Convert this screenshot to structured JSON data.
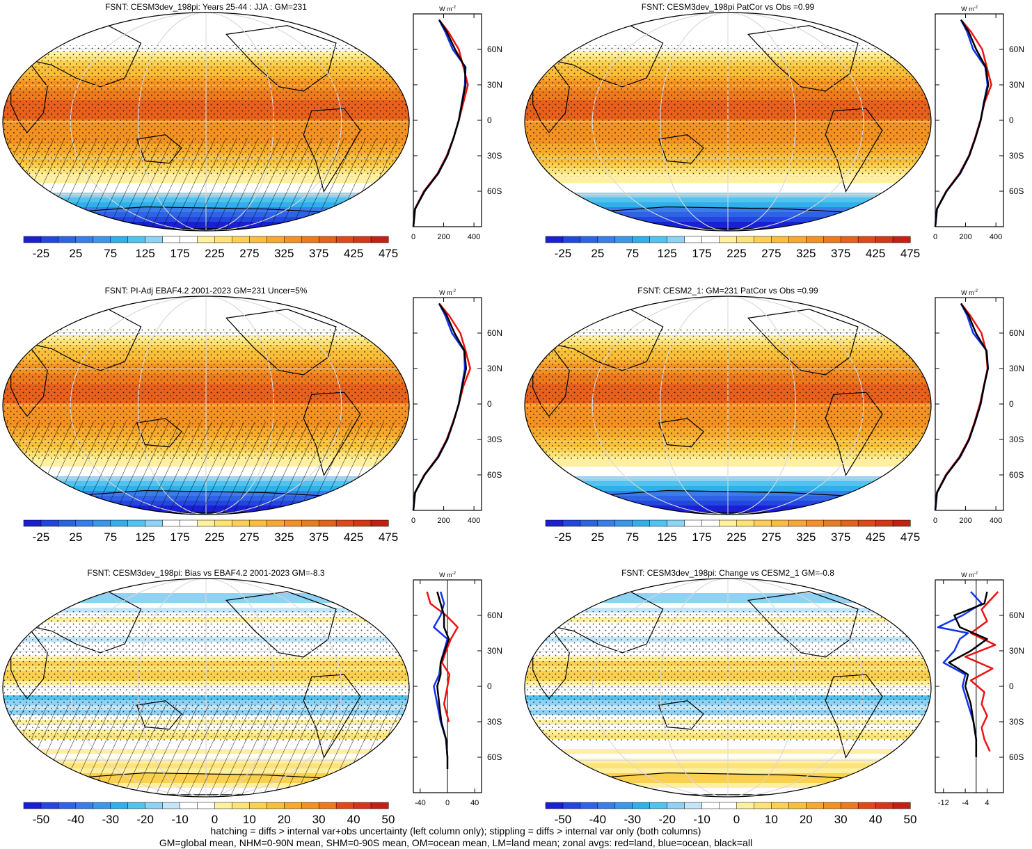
{
  "footnotes": {
    "line1": "hatching = diffs > internal var+obs uncertainty (left column only); stippling = diffs > internal var only (both columns)",
    "line2": "GM=global mean, NHM=0-90N mean, SHM=0-90S mean, OM=ocean mean, LM=land mean; zonal avgs: red=land, blue=ocean, black=all"
  },
  "colors": {
    "land_series": "#ee1111",
    "ocean_series": "#1133ee",
    "all_series": "#000000",
    "land_mask": "#c8c8c8"
  },
  "chart_data": [
    {
      "type": "heatmap",
      "title": "FSNT: CESM3dev_198pi: Years 25-44 : JJA : GM=231",
      "colorbar": [
        "-25",
        "25",
        "75",
        "125",
        "175",
        "225",
        "275",
        "325",
        "375",
        "425",
        "475"
      ],
      "palette": "absolute",
      "hatching": true,
      "zonal": {
        "unit_label": "W m",
        "unit_sup": "-2",
        "xlim": [
          0,
          450
        ],
        "xticks": [
          "0",
          "200",
          "400"
        ],
        "xtick_values": [
          0,
          200,
          400
        ],
        "ylim": [
          -90,
          90
        ],
        "yticks": [
          "60N",
          "30N",
          "0",
          "30S",
          "60S"
        ],
        "ytick_values": [
          60,
          30,
          0,
          -30,
          -60
        ],
        "series": [
          {
            "name": "land",
            "lat": [
              -90,
              -75,
              -60,
              -45,
              -30,
              -15,
              0,
              15,
              30,
              45,
              60,
              75,
              85
            ],
            "values": [
              0,
              10,
              70,
              160,
              220,
              265,
              300,
              330,
              360,
              330,
              300,
              230,
              170
            ]
          },
          {
            "name": "ocean",
            "lat": [
              -90,
              -75,
              -60,
              -45,
              -30,
              -15,
              0,
              15,
              30,
              45,
              60,
              75,
              85
            ],
            "values": [
              0,
              12,
              75,
              165,
              225,
              265,
              300,
              320,
              340,
              345,
              260,
              210,
              170
            ]
          },
          {
            "name": "all",
            "lat": [
              -90,
              -75,
              -60,
              -45,
              -30,
              -15,
              0,
              15,
              30,
              45,
              60,
              75,
              85
            ],
            "values": [
              0,
              11,
              74,
              163,
              224,
              265,
              300,
              322,
              345,
              340,
              275,
              220,
              170
            ]
          }
        ]
      }
    },
    {
      "type": "heatmap",
      "title": "FSNT: CESM3dev_198pi PatCor vs Obs =0.99",
      "colorbar": [
        "-25",
        "25",
        "75",
        "125",
        "175",
        "225",
        "275",
        "325",
        "375",
        "425",
        "475"
      ],
      "palette": "absolute",
      "hatching": false,
      "zonal": {
        "unit_label": "W m",
        "unit_sup": "-2",
        "xlim": [
          0,
          450
        ],
        "xticks": [
          "0",
          "200",
          "400"
        ],
        "xtick_values": [
          0,
          200,
          400
        ],
        "ylim": [
          -90,
          90
        ],
        "yticks": [
          "60N",
          "30N",
          "0",
          "30S",
          "60S"
        ],
        "ytick_values": [
          60,
          30,
          0,
          -30,
          -60
        ],
        "series": [
          {
            "name": "land",
            "lat": [
              -90,
              -75,
              -60,
              -45,
              -30,
              -15,
              0,
              15,
              30,
              45,
              60,
              75,
              85
            ],
            "values": [
              0,
              10,
              72,
              160,
              222,
              262,
              298,
              325,
              370,
              340,
              310,
              235,
              170
            ]
          },
          {
            "name": "ocean",
            "lat": [
              -90,
              -75,
              -60,
              -45,
              -30,
              -15,
              0,
              15,
              30,
              45,
              60,
              75,
              85
            ],
            "values": [
              0,
              12,
              75,
              165,
              225,
              265,
              300,
              320,
              345,
              330,
              250,
              210,
              170
            ]
          },
          {
            "name": "all",
            "lat": [
              -90,
              -75,
              -60,
              -45,
              -30,
              -15,
              0,
              15,
              30,
              45,
              60,
              75,
              85
            ],
            "values": [
              0,
              11,
              74,
              163,
              224,
              265,
              300,
              322,
              350,
              333,
              270,
              220,
              170
            ]
          }
        ]
      }
    },
    {
      "type": "heatmap",
      "title": "FSNT: PI-Adj EBAF4.2 2001-2023 GM=231 Uncer=5%",
      "colorbar": [
        "-25",
        "25",
        "75",
        "125",
        "175",
        "225",
        "275",
        "325",
        "375",
        "425",
        "475"
      ],
      "palette": "absolute",
      "hatching": true,
      "zonal": {
        "unit_label": "W m",
        "unit_sup": "-2",
        "xlim": [
          0,
          450
        ],
        "xticks": [
          "0",
          "200",
          "400"
        ],
        "xtick_values": [
          0,
          200,
          400
        ],
        "ylim": [
          -90,
          90
        ],
        "yticks": [
          "60N",
          "30N",
          "0",
          "30S",
          "60S"
        ],
        "ytick_values": [
          60,
          30,
          0,
          -30,
          -60
        ],
        "series": [
          {
            "name": "land",
            "lat": [
              -90,
              -75,
              -60,
              -45,
              -30,
              -15,
              0,
              15,
              30,
              45,
              60,
              75,
              85
            ],
            "values": [
              0,
              10,
              72,
              160,
              220,
              262,
              300,
              330,
              375,
              345,
              310,
              235,
              170
            ]
          },
          {
            "name": "ocean",
            "lat": [
              -90,
              -75,
              -60,
              -45,
              -30,
              -15,
              0,
              15,
              30,
              45,
              60,
              75,
              85
            ],
            "values": [
              0,
              12,
              75,
              165,
              225,
              265,
              300,
              320,
              340,
              335,
              255,
              210,
              170
            ]
          },
          {
            "name": "all",
            "lat": [
              -90,
              -75,
              -60,
              -45,
              -30,
              -15,
              0,
              15,
              30,
              45,
              60,
              75,
              85
            ],
            "values": [
              0,
              11,
              74,
              163,
              223,
              265,
              300,
              322,
              348,
              337,
              272,
              220,
              170
            ]
          }
        ]
      }
    },
    {
      "type": "heatmap",
      "title": "FSNT: CESM2_1: GM=231 PatCor vs Obs =0.99",
      "colorbar": [
        "-25",
        "25",
        "75",
        "125",
        "175",
        "225",
        "275",
        "325",
        "375",
        "425",
        "475"
      ],
      "palette": "absolute",
      "hatching": false,
      "zonal": {
        "unit_label": "W m",
        "unit_sup": "-2",
        "xlim": [
          0,
          450
        ],
        "xticks": [
          "0",
          "200",
          "400"
        ],
        "xtick_values": [
          0,
          200,
          400
        ],
        "ylim": [
          -90,
          90
        ],
        "yticks": [
          "60N",
          "30N",
          "0",
          "30S",
          "60S"
        ],
        "ytick_values": [
          60,
          30,
          0,
          -30,
          -60
        ],
        "series": [
          {
            "name": "land",
            "lat": [
              -90,
              -75,
              -60,
              -45,
              -30,
              -15,
              0,
              15,
              30,
              45,
              60,
              75,
              85
            ],
            "values": [
              0,
              10,
              70,
              158,
              220,
              260,
              295,
              320,
              345,
              335,
              305,
              230,
              170
            ]
          },
          {
            "name": "ocean",
            "lat": [
              -90,
              -75,
              -60,
              -45,
              -30,
              -15,
              0,
              15,
              30,
              45,
              60,
              75,
              85
            ],
            "values": [
              0,
              12,
              74,
              164,
              224,
              264,
              300,
              322,
              348,
              340,
              250,
              210,
              170
            ]
          },
          {
            "name": "all",
            "lat": [
              -90,
              -75,
              -60,
              -45,
              -30,
              -15,
              0,
              15,
              30,
              45,
              60,
              75,
              85
            ],
            "values": [
              0,
              11,
              73,
              162,
              223,
              263,
              299,
              321,
              347,
              338,
              268,
              220,
              170
            ]
          }
        ]
      }
    },
    {
      "type": "heatmap",
      "title": "FSNT: CESM3dev_198pi: Bias vs EBAF4.2 2001-2023 GM=-8.3",
      "colorbar": [
        "-50",
        "-40",
        "-30",
        "-20",
        "-10",
        "0",
        "10",
        "20",
        "30",
        "40",
        "50"
      ],
      "palette": "difference",
      "hatching": true,
      "zonal": {
        "unit_label": "W m",
        "unit_sup": "-2",
        "xlim": [
          -50,
          50
        ],
        "xticks": [
          "-40",
          "0",
          "40"
        ],
        "xtick_values": [
          -40,
          0,
          40
        ],
        "ylim": [
          -90,
          90
        ],
        "yticks": [
          "60N",
          "30N",
          "0",
          "30S",
          "60S"
        ],
        "ytick_values": [
          60,
          30,
          0,
          -30,
          -60
        ],
        "series": [
          {
            "name": "land",
            "lat": [
              -30,
              -15,
              0,
              10,
              20,
              30,
              40,
              50,
              60,
              70,
              80
            ],
            "values": [
              2,
              -5,
              0,
              3,
              -8,
              -2,
              5,
              15,
              -2,
              -25,
              -30
            ]
          },
          {
            "name": "ocean",
            "lat": [
              -60,
              -45,
              -30,
              -15,
              0,
              10,
              20,
              30,
              40,
              50,
              60,
              70,
              80
            ],
            "values": [
              0,
              -2,
              -10,
              -15,
              -20,
              -12,
              -10,
              -5,
              0,
              -20,
              -10,
              -5,
              -10
            ]
          },
          {
            "name": "all",
            "lat": [
              -70,
              -60,
              -45,
              -30,
              -15,
              0,
              10,
              20,
              30,
              40,
              50,
              60,
              70,
              80
            ],
            "values": [
              0,
              0,
              -2,
              -9,
              -12,
              -15,
              -10,
              -10,
              -4,
              2,
              -5,
              -5,
              -10,
              -15
            ]
          }
        ]
      }
    },
    {
      "type": "heatmap",
      "title": "FSNT: CESM3dev_198pi: Change vs CESM2_1 GM=-0.8",
      "colorbar": [
        "-50",
        "-40",
        "-30",
        "-20",
        "-10",
        "0",
        "10",
        "20",
        "30",
        "40",
        "50"
      ],
      "palette": "difference",
      "hatching": false,
      "zonal": {
        "unit_label": "W m",
        "unit_sup": "-2",
        "xlim": [
          -15,
          10
        ],
        "xticks": [
          "-12",
          "-4",
          "4"
        ],
        "xtick_values": [
          -12,
          -4,
          4
        ],
        "ylim": [
          -90,
          90
        ],
        "yticks": [
          "60N",
          "30N",
          "0",
          "30S",
          "60S"
        ],
        "ytick_values": [
          60,
          30,
          0,
          -30,
          -60
        ],
        "series": [
          {
            "name": "land",
            "lat": [
              -55,
              -45,
              -35,
              -25,
              -15,
              -5,
              5,
              15,
              25,
              35,
              45,
              55,
              65,
              75,
              80
            ],
            "values": [
              5,
              3,
              2,
              4,
              2,
              3,
              -2,
              6,
              -4,
              7,
              -2,
              4,
              2,
              6,
              8
            ]
          },
          {
            "name": "ocean",
            "lat": [
              -60,
              -45,
              -30,
              -15,
              0,
              10,
              20,
              30,
              40,
              45,
              50,
              60,
              70,
              80
            ],
            "values": [
              0,
              0,
              -1,
              -3,
              -5,
              -4,
              -12,
              -8,
              -6,
              -3,
              -14,
              -5,
              2,
              -2
            ]
          },
          {
            "name": "all",
            "lat": [
              -60,
              -45,
              -30,
              -15,
              0,
              10,
              20,
              30,
              40,
              50,
              60,
              70,
              80
            ],
            "values": [
              0,
              0,
              -1,
              -2,
              -4,
              -3,
              -10,
              -2,
              4,
              -6,
              -8,
              3,
              4
            ]
          }
        ]
      }
    }
  ]
}
